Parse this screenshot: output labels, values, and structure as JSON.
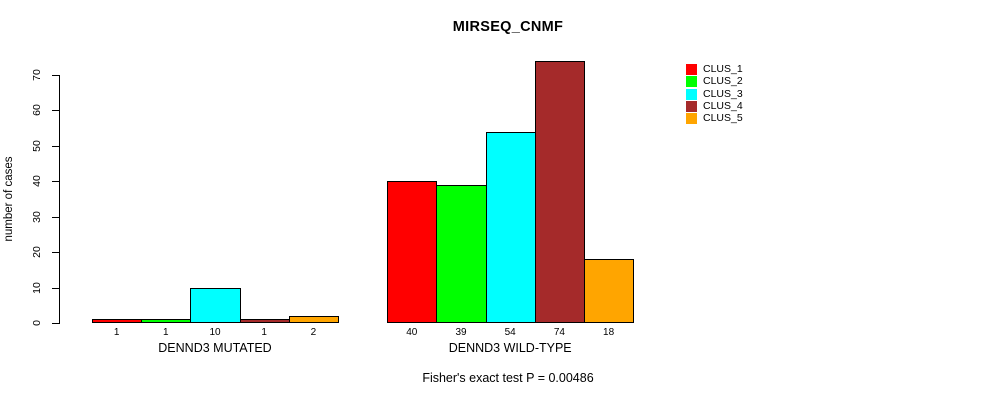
{
  "chart_data": {
    "type": "bar",
    "title": "MIRSEQ_CNMF",
    "ylabel": "number of cases",
    "ylim": [
      0,
      70
    ],
    "yticks": [
      0,
      10,
      20,
      30,
      40,
      50,
      60,
      70
    ],
    "grid": false,
    "legend_position": "right",
    "categories": [
      "DENND3 MUTATED",
      "DENND3 WILD-TYPE"
    ],
    "series": [
      {
        "name": "CLUS_1",
        "color": "#FF0000",
        "values": [
          1,
          40
        ]
      },
      {
        "name": "CLUS_2",
        "color": "#00FF00",
        "values": [
          1,
          39
        ]
      },
      {
        "name": "CLUS_3",
        "color": "#00FFFF",
        "values": [
          10,
          54
        ]
      },
      {
        "name": "CLUS_4",
        "color": "#A52A2A",
        "values": [
          1,
          74
        ]
      },
      {
        "name": "CLUS_5",
        "color": "#FFA500",
        "values": [
          2,
          18
        ]
      }
    ],
    "bar_value_labels": [
      [
        1,
        1,
        10,
        1,
        2
      ],
      [
        40,
        39,
        54,
        74,
        18
      ]
    ],
    "annotation": "Fisher's exact test P = 0.00486"
  }
}
